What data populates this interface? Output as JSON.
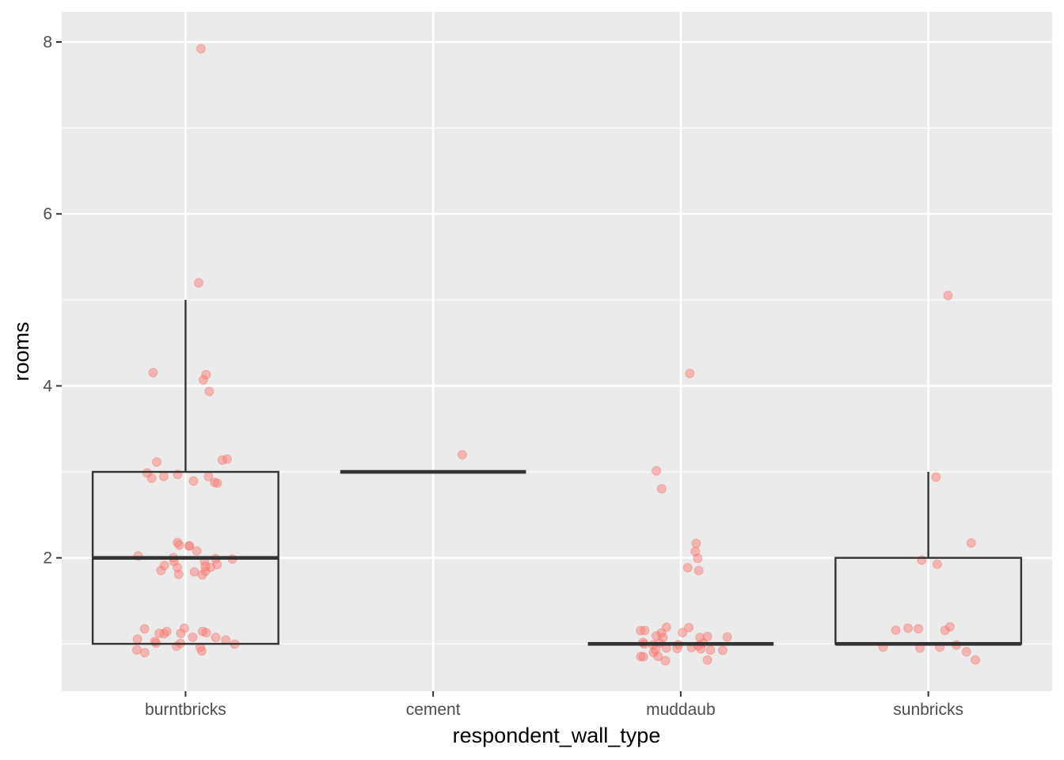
{
  "chart_data": {
    "type": "boxplot",
    "xlabel": "respondent_wall_type",
    "ylabel": "rooms",
    "categories": [
      "burntbricks",
      "cement",
      "muddaub",
      "sunbricks"
    ],
    "y_ticks": [
      2,
      4,
      6,
      8
    ],
    "ylim": [
      0.45,
      8.35
    ],
    "grid": true,
    "colors": {
      "panel": "#ebebeb",
      "grid": "#ffffff",
      "box": "#333333",
      "points": "#f8766d",
      "axis_text": "#4d4d4d",
      "axis_title": "#000000"
    },
    "boxes": [
      {
        "category": "burntbricks",
        "lower_whisker": 1,
        "q1": 1,
        "median": 2,
        "q3": 3,
        "upper_whisker": 5
      },
      {
        "category": "cement",
        "lower_whisker": 3,
        "q1": 3,
        "median": 3,
        "q3": 3,
        "upper_whisker": 3
      },
      {
        "category": "muddaub",
        "lower_whisker": 1,
        "q1": 1,
        "median": 1,
        "q3": 1,
        "upper_whisker": 1
      },
      {
        "category": "sunbricks",
        "lower_whisker": 1,
        "q1": 1,
        "median": 1,
        "q3": 2,
        "upper_whisker": 3
      }
    ],
    "points": [
      {
        "category": "burntbricks",
        "values": [
          8,
          5,
          4,
          4,
          4,
          4,
          3,
          3,
          3,
          3,
          3,
          3,
          3,
          3,
          3,
          3,
          3,
          2,
          2,
          2,
          2,
          2,
          2,
          2,
          2,
          2,
          2,
          2,
          2,
          2,
          2,
          2,
          2,
          2,
          2,
          2,
          2,
          2,
          1,
          1,
          1,
          1,
          1,
          1,
          1,
          1,
          1,
          1,
          1,
          1,
          1,
          1,
          1,
          1,
          1,
          1,
          1,
          1,
          1
        ]
      },
      {
        "category": "cement",
        "values": [
          3
        ]
      },
      {
        "category": "muddaub",
        "values": [
          4,
          3,
          3,
          2,
          2,
          2,
          2,
          2,
          1,
          1,
          1,
          1,
          1,
          1,
          1,
          1,
          1,
          1,
          1,
          1,
          1,
          1,
          1,
          1,
          1,
          1,
          1,
          1,
          1,
          1,
          1,
          1,
          1,
          1,
          1,
          1,
          1,
          1,
          1
        ]
      },
      {
        "category": "sunbricks",
        "values": [
          5,
          3,
          2,
          2,
          2,
          1,
          1,
          1,
          1,
          1,
          1,
          1,
          1,
          1,
          1,
          1
        ]
      }
    ]
  }
}
